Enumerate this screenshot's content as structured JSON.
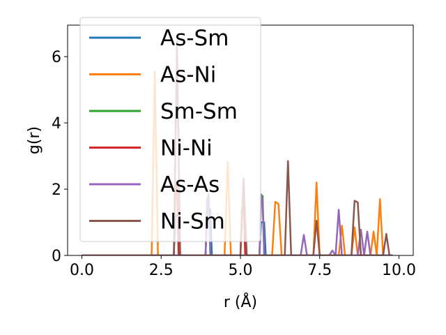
{
  "chart_data": {
    "type": "line",
    "title": "",
    "xlabel": "r (Å)",
    "ylabel": "g(r)",
    "xlim": [
      -0.45,
      10.45
    ],
    "ylim": [
      0,
      6.95
    ],
    "xticks": [
      0.0,
      2.5,
      5.0,
      7.5,
      10.0
    ],
    "xtick_labels": [
      "0.0",
      "2.5",
      "5.0",
      "7.5",
      "10.0"
    ],
    "yticks": [
      0,
      2,
      4,
      6
    ],
    "ytick_labels": [
      "0",
      "2",
      "4",
      "6"
    ],
    "grid": false,
    "legend_position": "top-left",
    "series": [
      {
        "name": "As-Sm",
        "color": "#1f77b4",
        "x": [
          0,
          2.9,
          2.95,
          3.05,
          3.1,
          3.9,
          3.95,
          4.05,
          4.1,
          5.6,
          5.65,
          5.75,
          5.8,
          9.8
        ],
        "y": [
          0,
          0,
          1.2,
          1.2,
          0,
          0,
          1.4,
          1.4,
          0,
          0,
          1.0,
          1.0,
          0,
          0
        ]
      },
      {
        "name": "As-Ni",
        "color": "#ff7f0e",
        "x": [
          0,
          2.2,
          2.3,
          2.4,
          4.5,
          4.6,
          4.7,
          6.0,
          6.1,
          6.2,
          6.3,
          7.3,
          7.4,
          7.5,
          8.1,
          8.2,
          8.3,
          8.5,
          8.6,
          8.7,
          9.1,
          9.2,
          9.3,
          9.4,
          9.5,
          9.8
        ],
        "y": [
          0,
          0,
          5.55,
          0,
          0,
          2.82,
          0,
          0,
          1.62,
          1.55,
          0,
          0,
          2.2,
          0,
          0,
          0.9,
          0,
          0,
          0.85,
          0,
          0,
          0.72,
          0,
          1.7,
          0,
          0
        ]
      },
      {
        "name": "Sm-Sm",
        "color": "#2ca02c",
        "x": [
          0,
          3.9,
          3.95,
          4.0,
          4.05,
          5.6,
          5.65,
          5.7,
          5.75,
          9.8
        ],
        "y": [
          0,
          0,
          1.5,
          1.7,
          0,
          0,
          1.6,
          1.8,
          0,
          0
        ]
      },
      {
        "name": "Ni-Ni",
        "color": "#d62728",
        "x": [
          0,
          2.9,
          2.95,
          3.0,
          3.05,
          5.0,
          5.05,
          5.1,
          5.15,
          9.8
        ],
        "y": [
          0,
          0,
          2.0,
          2.2,
          0,
          0,
          1.4,
          1.6,
          0,
          0
        ]
      },
      {
        "name": "As-As",
        "color": "#9467bd",
        "x": [
          0,
          3.9,
          3.95,
          4.0,
          4.05,
          5.6,
          5.65,
          5.7,
          5.75,
          6.9,
          7.0,
          7.1,
          7.8,
          7.9,
          8.0,
          8.1,
          8.2,
          8.7,
          8.8,
          8.9,
          9.0,
          9.1,
          9.2,
          9.8
        ],
        "y": [
          0,
          0,
          1.7,
          1.85,
          0,
          0,
          1.85,
          1.6,
          0,
          0,
          0.62,
          0,
          0,
          0.15,
          0,
          1.38,
          0,
          0,
          0.78,
          0,
          0.72,
          0,
          0,
          0
        ]
      },
      {
        "name": "Ni-Sm",
        "color": "#8c564b",
        "x": [
          0,
          2.9,
          3.0,
          3.1,
          5.0,
          5.1,
          5.2,
          6.4,
          6.5,
          6.6,
          7.3,
          7.4,
          7.5,
          8.5,
          8.6,
          8.7,
          8.8,
          9.5,
          9.6,
          9.7,
          9.8
        ],
        "y": [
          0,
          0,
          6.45,
          0,
          0,
          2.32,
          0,
          0,
          2.85,
          0,
          0,
          1.05,
          0,
          0,
          1.65,
          1.6,
          0,
          0,
          0.65,
          0,
          0
        ]
      }
    ]
  }
}
